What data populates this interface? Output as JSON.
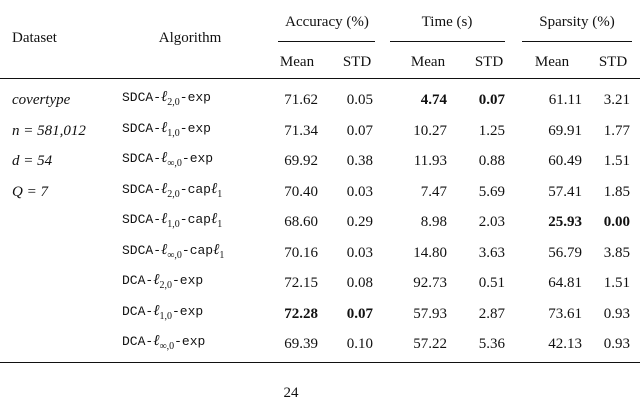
{
  "table": {
    "header": {
      "dataset": "Dataset",
      "algorithm": "Algorithm",
      "groups": [
        "Accuracy (%)",
        "Time (s)",
        "Sparsity (%)"
      ],
      "sub": [
        "Mean",
        "STD",
        "Mean",
        "STD",
        "Mean",
        "STD"
      ]
    },
    "dataset_info": [
      "covertype",
      "n = 581,012",
      "d = 54",
      "Q = 7"
    ],
    "rows": [
      {
        "algorithm": [
          {
            "t": "SDCA-"
          },
          {
            "t": "ℓ",
            "m": true
          },
          {
            "t": "2,0",
            "sub": true
          },
          {
            "t": "-exp"
          }
        ],
        "cells": [
          "71.62",
          "0.05",
          "4.74",
          "0.07",
          "61.11",
          "3.21"
        ],
        "bold": [
          2,
          3
        ]
      },
      {
        "algorithm": [
          {
            "t": "SDCA-"
          },
          {
            "t": "ℓ",
            "m": true
          },
          {
            "t": "1,0",
            "sub": true
          },
          {
            "t": "-exp"
          }
        ],
        "cells": [
          "71.34",
          "0.07",
          "10.27",
          "1.25",
          "69.91",
          "1.77"
        ],
        "bold": []
      },
      {
        "algorithm": [
          {
            "t": "SDCA-"
          },
          {
            "t": "ℓ",
            "m": true
          },
          {
            "t": "∞,0",
            "sub": true
          },
          {
            "t": "-exp"
          }
        ],
        "cells": [
          "69.92",
          "0.38",
          "11.93",
          "0.88",
          "60.49",
          "1.51"
        ],
        "bold": []
      },
      {
        "algorithm": [
          {
            "t": "SDCA-"
          },
          {
            "t": "ℓ",
            "m": true
          },
          {
            "t": "2,0",
            "sub": true
          },
          {
            "t": "-cap"
          },
          {
            "t": "ℓ",
            "m": true
          },
          {
            "t": "1",
            "sub": true
          }
        ],
        "cells": [
          "70.40",
          "0.03",
          "7.47",
          "5.69",
          "57.41",
          "1.85"
        ],
        "bold": []
      },
      {
        "algorithm": [
          {
            "t": "SDCA-"
          },
          {
            "t": "ℓ",
            "m": true
          },
          {
            "t": "1,0",
            "sub": true
          },
          {
            "t": "-cap"
          },
          {
            "t": "ℓ",
            "m": true
          },
          {
            "t": "1",
            "sub": true
          }
        ],
        "cells": [
          "68.60",
          "0.29",
          "8.98",
          "2.03",
          "25.93",
          "0.00"
        ],
        "bold": [
          4,
          5
        ]
      },
      {
        "algorithm": [
          {
            "t": "SDCA-"
          },
          {
            "t": "ℓ",
            "m": true
          },
          {
            "t": "∞,0",
            "sub": true
          },
          {
            "t": "-cap"
          },
          {
            "t": "ℓ",
            "m": true
          },
          {
            "t": "1",
            "sub": true
          }
        ],
        "cells": [
          "70.16",
          "0.03",
          "14.80",
          "3.63",
          "56.79",
          "3.85"
        ],
        "bold": []
      },
      {
        "algorithm": [
          {
            "t": "DCA-"
          },
          {
            "t": "ℓ",
            "m": true
          },
          {
            "t": "2,0",
            "sub": true
          },
          {
            "t": "-exp"
          }
        ],
        "cells": [
          "72.15",
          "0.08",
          "92.73",
          "0.51",
          "64.81",
          "1.51"
        ],
        "bold": []
      },
      {
        "algorithm": [
          {
            "t": "DCA-"
          },
          {
            "t": "ℓ",
            "m": true
          },
          {
            "t": "1,0",
            "sub": true
          },
          {
            "t": "-exp"
          }
        ],
        "cells": [
          "72.28",
          "0.07",
          "57.93",
          "2.87",
          "73.61",
          "0.93"
        ],
        "bold": [
          0,
          1
        ]
      },
      {
        "algorithm": [
          {
            "t": "DCA-"
          },
          {
            "t": "ℓ",
            "m": true
          },
          {
            "t": "∞,0",
            "sub": true
          },
          {
            "t": "-exp"
          }
        ],
        "cells": [
          "69.39",
          "0.10",
          "57.22",
          "5.36",
          "42.13",
          "0.93"
        ],
        "bold": []
      }
    ]
  },
  "page_number": "24"
}
